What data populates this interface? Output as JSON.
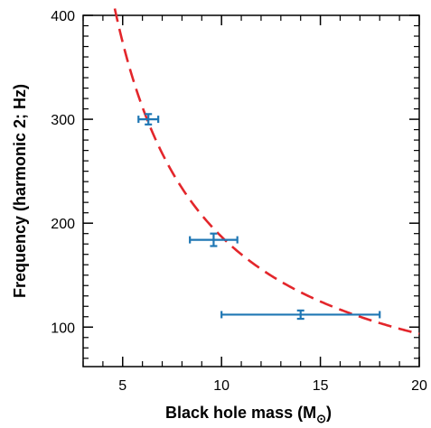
{
  "chart_data": {
    "type": "scatter",
    "xlabel": "Black hole mass (M",
    "xlabel_subscript": "⊙",
    "xlabel_suffix": ")",
    "ylabel": "Frequency (harmonic 2; Hz)",
    "xlim": [
      3,
      20
    ],
    "ylim": [
      62,
      400
    ],
    "xticks": [
      5,
      10,
      15,
      20
    ],
    "yticks": [
      100,
      200,
      300,
      400
    ],
    "grid": false,
    "series": [
      {
        "type": "errorbar",
        "color": "#1f77b4",
        "points": [
          {
            "x": 6.3,
            "x_lo": 5.8,
            "x_hi": 6.8,
            "y": 300,
            "y_lo": 295,
            "y_hi": 305
          },
          {
            "x": 9.6,
            "x_lo": 8.4,
            "x_hi": 10.8,
            "y": 184,
            "y_lo": 178,
            "y_hi": 190
          },
          {
            "x": 14.0,
            "x_lo": 10.0,
            "x_hi": 18.0,
            "y": 112,
            "y_lo": 108,
            "y_hi": 116
          }
        ]
      },
      {
        "type": "curve",
        "style": "dashed",
        "color": "#e3262b",
        "relation": "f = 1870 / M",
        "coefficient": 1870,
        "x_range": [
          4.6,
          20.0
        ]
      }
    ]
  }
}
